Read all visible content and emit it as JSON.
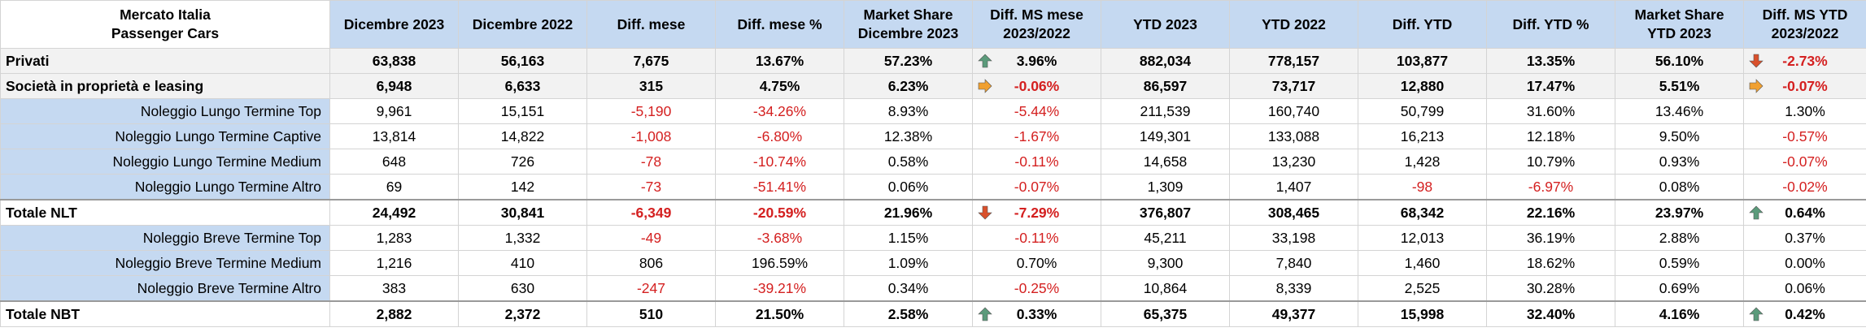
{
  "header": {
    "title_line1": "Mercato Italia",
    "title_line2": "Passenger Cars",
    "columns": [
      [
        "Dicembre 2023"
      ],
      [
        "Dicembre 2022"
      ],
      [
        "Diff. mese"
      ],
      [
        "Diff. mese %"
      ],
      [
        "Market Share",
        "Dicembre 2023"
      ],
      [
        "Diff. MS mese",
        "2023/2022"
      ],
      [
        "YTD 2023"
      ],
      [
        "YTD 2022"
      ],
      [
        "Diff. YTD"
      ],
      [
        "Diff. YTD %"
      ],
      [
        "Market Share",
        "YTD 2023"
      ],
      [
        "Diff. MS YTD",
        "2023/2022"
      ]
    ]
  },
  "colors": {
    "up": "#5b9b7b",
    "down": "#d9502b",
    "flat": "#f0a030",
    "negative_text": "#d42020"
  },
  "rows": [
    {
      "label": "Privati",
      "type": "main",
      "shaded": true,
      "cells": [
        "63,838",
        "56,163",
        "7,675",
        "13.67%",
        "57.23%",
        "3.96%",
        "882,034",
        "778,157",
        "103,877",
        "13.35%",
        "56.10%",
        "-2.73%"
      ],
      "neg": [
        false,
        false,
        false,
        false,
        false,
        false,
        false,
        false,
        false,
        false,
        false,
        true
      ],
      "arrow_ms_mese": "up-arrow-icon",
      "arrow_ms_ytd": "down-arrow-icon"
    },
    {
      "label": "Società in proprietà e leasing",
      "type": "main",
      "shaded": true,
      "cells": [
        "6,948",
        "6,633",
        "315",
        "4.75%",
        "6.23%",
        "-0.06%",
        "86,597",
        "73,717",
        "12,880",
        "17.47%",
        "5.51%",
        "-0.07%"
      ],
      "neg": [
        false,
        false,
        false,
        false,
        false,
        true,
        false,
        false,
        false,
        false,
        false,
        true
      ],
      "arrow_ms_mese": "right-arrow-icon",
      "arrow_ms_ytd": "right-arrow-icon"
    },
    {
      "label": "Noleggio Lungo Termine Top",
      "type": "sub",
      "cells": [
        "9,961",
        "15,151",
        "-5,190",
        "-34.26%",
        "8.93%",
        "-5.44%",
        "211,539",
        "160,740",
        "50,799",
        "31.60%",
        "13.46%",
        "1.30%"
      ],
      "neg": [
        false,
        false,
        true,
        true,
        false,
        true,
        false,
        false,
        false,
        false,
        false,
        false
      ]
    },
    {
      "label": "Noleggio Lungo Termine Captive",
      "type": "sub",
      "cells": [
        "13,814",
        "14,822",
        "-1,008",
        "-6.80%",
        "12.38%",
        "-1.67%",
        "149,301",
        "133,088",
        "16,213",
        "12.18%",
        "9.50%",
        "-0.57%"
      ],
      "neg": [
        false,
        false,
        true,
        true,
        false,
        true,
        false,
        false,
        false,
        false,
        false,
        true
      ]
    },
    {
      "label": "Noleggio Lungo Termine Medium",
      "type": "sub",
      "cells": [
        "648",
        "726",
        "-78",
        "-10.74%",
        "0.58%",
        "-0.11%",
        "14,658",
        "13,230",
        "1,428",
        "10.79%",
        "0.93%",
        "-0.07%"
      ],
      "neg": [
        false,
        false,
        true,
        true,
        false,
        true,
        false,
        false,
        false,
        false,
        false,
        true
      ]
    },
    {
      "label": "Noleggio Lungo Termine Altro",
      "type": "sub",
      "cells": [
        "69",
        "142",
        "-73",
        "-51.41%",
        "0.06%",
        "-0.07%",
        "1,309",
        "1,407",
        "-98",
        "-6.97%",
        "0.08%",
        "-0.02%"
      ],
      "neg": [
        false,
        false,
        true,
        true,
        false,
        true,
        false,
        false,
        true,
        true,
        false,
        true
      ]
    },
    {
      "label": "Totale NLT",
      "type": "total",
      "cells": [
        "24,492",
        "30,841",
        "-6,349",
        "-20.59%",
        "21.96%",
        "-7.29%",
        "376,807",
        "308,465",
        "68,342",
        "22.16%",
        "23.97%",
        "0.64%"
      ],
      "neg": [
        false,
        false,
        true,
        true,
        false,
        true,
        false,
        false,
        false,
        false,
        false,
        false
      ],
      "arrow_ms_mese": "down-arrow-icon",
      "arrow_ms_ytd": "up-arrow-icon"
    },
    {
      "label": "Noleggio Breve Termine Top",
      "type": "sub",
      "cells": [
        "1,283",
        "1,332",
        "-49",
        "-3.68%",
        "1.15%",
        "-0.11%",
        "45,211",
        "33,198",
        "12,013",
        "36.19%",
        "2.88%",
        "0.37%"
      ],
      "neg": [
        false,
        false,
        true,
        true,
        false,
        true,
        false,
        false,
        false,
        false,
        false,
        false
      ]
    },
    {
      "label": "Noleggio Breve Termine Medium",
      "type": "sub",
      "cells": [
        "1,216",
        "410",
        "806",
        "196.59%",
        "1.09%",
        "0.70%",
        "9,300",
        "7,840",
        "1,460",
        "18.62%",
        "0.59%",
        "0.00%"
      ],
      "neg": [
        false,
        false,
        false,
        false,
        false,
        false,
        false,
        false,
        false,
        false,
        false,
        false
      ]
    },
    {
      "label": "Noleggio Breve Termine Altro",
      "type": "sub",
      "cells": [
        "383",
        "630",
        "-247",
        "-39.21%",
        "0.34%",
        "-0.25%",
        "10,864",
        "8,339",
        "2,525",
        "30.28%",
        "0.69%",
        "0.06%"
      ],
      "neg": [
        false,
        false,
        true,
        true,
        false,
        true,
        false,
        false,
        false,
        false,
        false,
        false
      ]
    },
    {
      "label": "Totale NBT",
      "type": "total",
      "cells": [
        "2,882",
        "2,372",
        "510",
        "21.50%",
        "2.58%",
        "0.33%",
        "65,375",
        "49,377",
        "15,998",
        "32.40%",
        "4.16%",
        "0.42%"
      ],
      "neg": [
        false,
        false,
        false,
        false,
        false,
        false,
        false,
        false,
        false,
        false,
        false,
        false
      ],
      "arrow_ms_mese": "up-arrow-icon",
      "arrow_ms_ytd": "up-arrow-icon"
    }
  ]
}
